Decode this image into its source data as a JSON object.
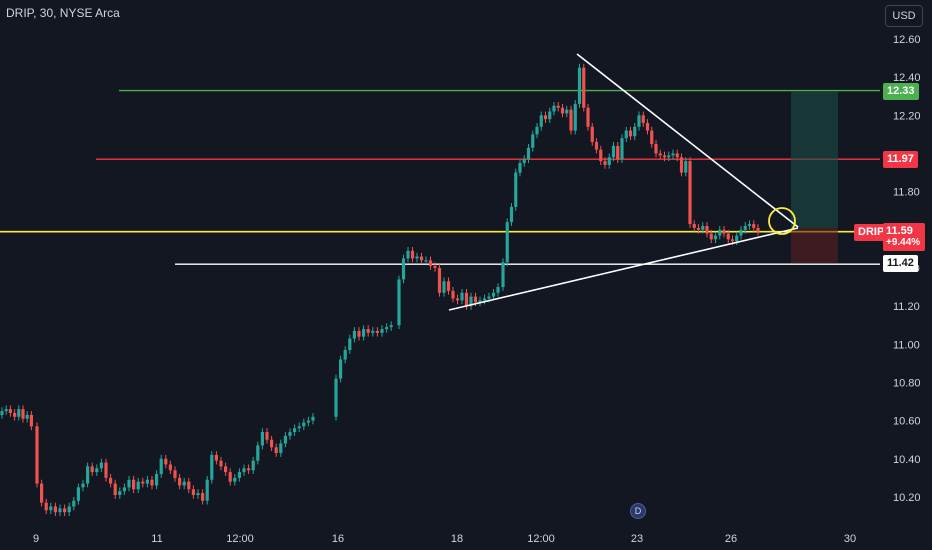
{
  "header": {
    "symbol_title": "DRIP, 30, NYSE Arca",
    "currency": "USD"
  },
  "event_marker": "D",
  "price_tags": {
    "target": "12.33",
    "resistance": "11.97",
    "symbol": "DRIP",
    "last_price": "11.59",
    "change_pct": "+9.44%",
    "support": "11.42"
  },
  "colors": {
    "background": "#131722",
    "up": "#26a69a",
    "down": "#ef5350",
    "target_line": "#4caf50",
    "resistance_line": "#f23645",
    "current_line": "#ffeb3b",
    "support_line": "#ffffff"
  },
  "chart_data": {
    "type": "candlestick",
    "title": "DRIP, 30, NYSE Arca",
    "y_axis_ticks": [
      "12.60",
      "12.40",
      "12.20",
      "11.80",
      "11.60",
      "11.40",
      "11.20",
      "11.00",
      "10.80",
      "10.60",
      "10.40",
      "10.20"
    ],
    "x_axis_ticks": [
      "9",
      "11",
      "12:00",
      "16",
      "18",
      "12:00",
      "23",
      "26",
      "30"
    ],
    "ylim": [
      10.05,
      12.72
    ],
    "horizontal_lines": [
      {
        "name": "target",
        "price": 12.33
      },
      {
        "name": "resistance",
        "price": 11.97
      },
      {
        "name": "current",
        "price": 11.59
      },
      {
        "name": "support",
        "price": 11.42
      }
    ],
    "last_price": 11.59,
    "change_pct": "+9.44%",
    "candles_close": [
      10.65,
      10.66,
      10.64,
      10.62,
      10.66,
      10.61,
      10.63,
      10.57,
      10.27,
      10.17,
      10.13,
      10.15,
      10.12,
      10.14,
      10.12,
      10.15,
      10.18,
      10.25,
      10.27,
      10.36,
      10.33,
      10.35,
      10.38,
      10.3,
      10.27,
      10.21,
      10.23,
      10.25,
      10.29,
      10.24,
      10.28,
      10.27,
      10.29,
      10.26,
      10.32,
      10.4,
      10.37,
      10.34,
      10.3,
      10.26,
      10.28,
      10.24,
      10.21,
      10.22,
      10.18,
      10.29,
      10.42,
      10.39,
      10.36,
      10.33,
      10.28,
      10.3,
      10.33,
      10.35,
      10.34,
      10.39,
      10.47,
      10.54,
      10.5,
      10.46,
      10.43,
      10.48,
      10.52,
      10.54,
      10.56,
      10.57,
      10.59,
      10.6,
      10.62,
      10.82,
      10.92,
      10.97,
      11.03,
      11.07,
      11.04,
      11.08,
      11.06,
      11.07,
      11.06,
      11.08,
      11.09,
      11.1,
      11.34,
      11.45,
      11.49,
      11.45,
      11.46,
      11.44,
      11.44,
      11.41,
      11.4,
      11.27,
      11.33,
      11.28,
      11.24,
      11.23,
      11.27,
      11.2,
      11.25,
      11.22,
      11.23,
      11.24,
      11.25,
      11.27,
      11.3,
      11.43,
      11.64,
      11.72,
      11.9,
      11.95,
      11.97,
      12.03,
      12.1,
      12.14,
      12.2,
      12.18,
      12.22,
      12.25,
      12.24,
      12.21,
      12.23,
      12.12,
      12.26,
      12.45,
      12.24,
      12.14,
      12.06,
      12.02,
      11.96,
      11.94,
      11.98,
      12.04,
      11.97,
      12.08,
      12.12,
      12.09,
      12.14,
      12.2,
      12.16,
      12.12,
      12.05,
      12.0,
      11.99,
      11.98,
      11.99,
      12.0,
      11.98,
      11.9,
      11.96,
      11.63,
      11.61,
      11.6,
      11.62,
      11.58,
      11.55,
      11.57,
      11.6,
      11.58,
      11.55,
      11.54,
      11.57,
      11.6,
      11.62,
      11.63,
      11.61,
      11.59
    ]
  }
}
